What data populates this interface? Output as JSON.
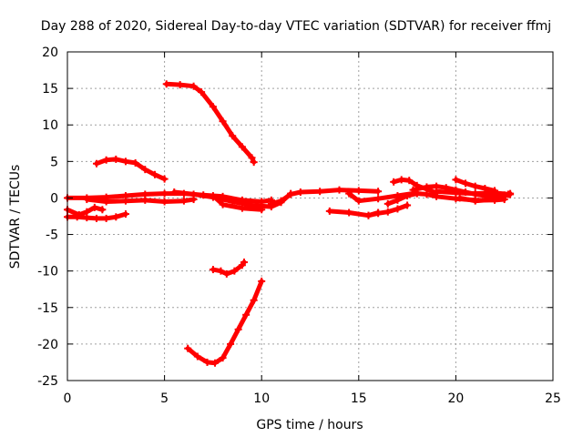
{
  "chart_data": {
    "type": "scatter",
    "title": "Day 288 of 2020, Sidereal Day-to-day VTEC variation (SDTVAR) for receiver ffmj",
    "xlabel": "GPS time / hours",
    "ylabel": "SDTVAR / TECUs",
    "xlim": [
      0,
      25
    ],
    "ylim": [
      -25,
      20
    ],
    "xticks": [
      0,
      5,
      10,
      15,
      20,
      25
    ],
    "yticks": [
      -25,
      -20,
      -15,
      -10,
      -5,
      0,
      5,
      10,
      15,
      20
    ],
    "grid": true,
    "series_color": "#ff0000",
    "series": [
      {
        "name": "s1",
        "x": [
          5.1,
          5.8,
          6.5,
          6.9,
          7.5,
          8.0,
          8.5,
          9.0,
          9.5,
          9.6
        ],
        "y": [
          15.6,
          15.5,
          15.3,
          14.5,
          12.5,
          10.5,
          8.5,
          7.0,
          5.5,
          4.9
        ]
      },
      {
        "name": "s2",
        "x": [
          1.5,
          2.0,
          2.5,
          3.0,
          3.5,
          4.0,
          4.5,
          5.0
        ],
        "y": [
          4.7,
          5.2,
          5.3,
          5.0,
          4.8,
          3.9,
          3.2,
          2.6
        ]
      },
      {
        "name": "s3",
        "x": [
          0.0,
          1.0,
          2.0,
          3.0,
          4.0,
          5.0,
          6.0,
          7.0,
          8.0,
          9.0,
          10.0,
          10.5
        ],
        "y": [
          0.0,
          0.0,
          0.1,
          0.3,
          0.5,
          0.6,
          0.6,
          0.4,
          0.2,
          -0.3,
          -0.5,
          -0.3
        ]
      },
      {
        "name": "s4",
        "x": [
          0.0,
          0.6,
          1.0,
          1.4,
          1.8
        ],
        "y": [
          -1.6,
          -2.3,
          -1.9,
          -1.3,
          -1.6
        ]
      },
      {
        "name": "s5",
        "x": [
          0.0,
          0.5,
          1.0,
          1.5,
          2.0,
          2.5,
          3.0
        ],
        "y": [
          -2.6,
          -2.6,
          -2.7,
          -2.8,
          -2.8,
          -2.6,
          -2.2
        ]
      },
      {
        "name": "s6",
        "x": [
          1.0,
          2.0,
          3.0,
          4.0,
          5.0,
          6.0,
          6.5
        ],
        "y": [
          -0.2,
          -0.5,
          -0.4,
          -0.3,
          -0.5,
          -0.4,
          -0.2
        ]
      },
      {
        "name": "s7",
        "x": [
          5.5,
          6.5,
          7.5,
          8.5,
          9.5,
          10.5,
          11.0,
          11.5
        ],
        "y": [
          0.8,
          0.5,
          0.1,
          -0.5,
          -1.0,
          -1.2,
          -0.6,
          0.6
        ]
      },
      {
        "name": "s8",
        "x": [
          7.5,
          8.0,
          9.0,
          10.0
        ],
        "y": [
          0.3,
          -0.9,
          -1.4,
          -1.6
        ]
      },
      {
        "name": "s9",
        "x": [
          10.5,
          11.0,
          11.5,
          12.0,
          13.0,
          14.0,
          15.0,
          16.0
        ],
        "y": [
          -0.8,
          -0.4,
          0.5,
          0.8,
          0.9,
          1.1,
          1.0,
          0.9
        ]
      },
      {
        "name": "s10",
        "x": [
          13.5,
          14.5,
          15.5,
          16.0
        ],
        "y": [
          -1.8,
          -2.0,
          -2.4,
          -2.0
        ]
      },
      {
        "name": "s11",
        "x": [
          14.5,
          15.0,
          16.0,
          17.0,
          18.0
        ],
        "y": [
          0.6,
          -0.4,
          -0.1,
          0.3,
          0.7
        ]
      },
      {
        "name": "s12",
        "x": [
          15.5,
          16.0,
          16.5,
          17.0,
          17.5
        ],
        "y": [
          -2.4,
          -2.1,
          -1.9,
          -1.5,
          -1.0
        ]
      },
      {
        "name": "s13",
        "x": [
          16.5,
          17.0,
          17.5,
          18.0,
          18.5,
          19.0,
          20.0,
          21.0,
          22.0,
          22.5
        ],
        "y": [
          -0.8,
          -0.3,
          0.3,
          0.6,
          0.5,
          0.2,
          -0.1,
          -0.3,
          -0.3,
          -0.2
        ]
      },
      {
        "name": "s14",
        "x": [
          16.8,
          17.2,
          17.6,
          18.0,
          18.5,
          19.0
        ],
        "y": [
          2.2,
          2.5,
          2.4,
          1.7,
          1.2,
          0.7
        ]
      },
      {
        "name": "s15",
        "x": [
          17.8,
          18.5,
          19.0,
          19.5,
          20.0,
          20.5,
          21.0,
          21.5,
          22.0,
          22.5,
          22.8
        ],
        "y": [
          1.1,
          1.5,
          1.6,
          1.4,
          1.1,
          0.8,
          0.5,
          0.3,
          0.3,
          0.4,
          0.6
        ]
      },
      {
        "name": "s16",
        "x": [
          20.0,
          20.5,
          21.0,
          21.5,
          22.0
        ],
        "y": [
          2.5,
          2.0,
          1.6,
          1.3,
          1.0
        ]
      },
      {
        "name": "s17",
        "x": [
          19.0,
          20.0,
          21.0,
          22.0,
          22.7
        ],
        "y": [
          0.9,
          0.7,
          0.6,
          0.7,
          0.5
        ]
      },
      {
        "name": "s18",
        "x": [
          20.2,
          21.0,
          22.0,
          22.8
        ],
        "y": [
          0.0,
          -0.4,
          -0.2,
          0.5
        ]
      },
      {
        "name": "s19",
        "x": [
          7.5,
          7.9,
          8.2,
          8.6,
          9.0,
          9.1
        ],
        "y": [
          -9.8,
          -10.0,
          -10.4,
          -10.0,
          -9.2,
          -8.8
        ]
      },
      {
        "name": "s20",
        "x": [
          6.2,
          6.7,
          7.2,
          7.6,
          8.0,
          8.4,
          8.8,
          9.2,
          9.6,
          10.0
        ],
        "y": [
          -20.6,
          -21.7,
          -22.5,
          -22.6,
          -21.9,
          -20.0,
          -18.0,
          -16.0,
          -14.0,
          -11.4
        ]
      }
    ]
  }
}
